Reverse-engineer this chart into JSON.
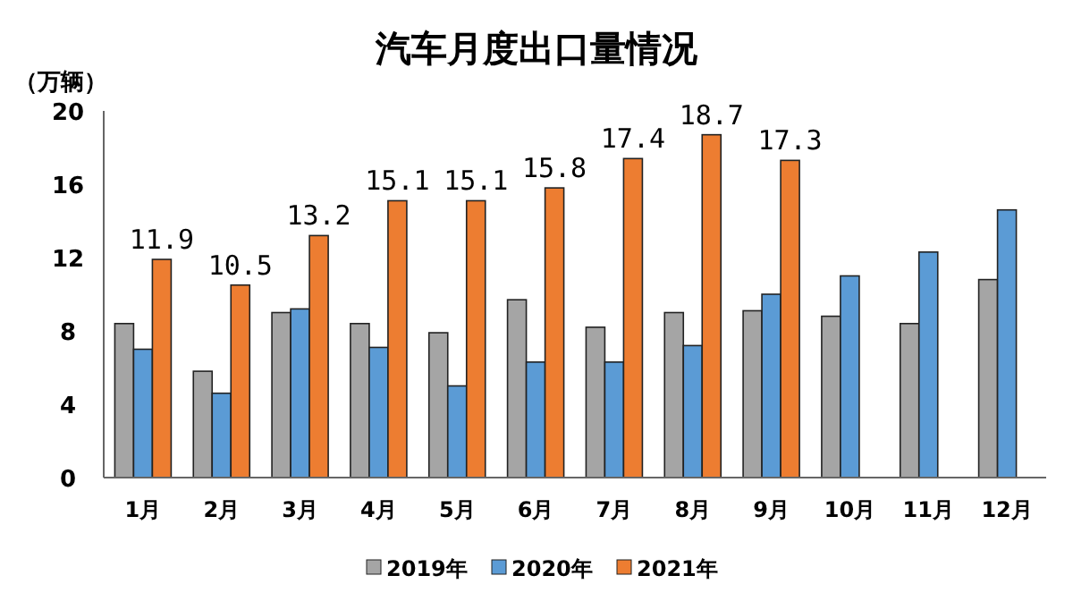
{
  "chart_data": {
    "type": "bar",
    "title": "汽车月度出口量情况",
    "ylabel": "（万辆）",
    "categories": [
      "1月",
      "2月",
      "3月",
      "4月",
      "5月",
      "6月",
      "7月",
      "8月",
      "9月",
      "10月",
      "11月",
      "12月"
    ],
    "series": [
      {
        "name": "2019年",
        "color": "#a5a5a5",
        "values": [
          8.4,
          5.8,
          9.0,
          8.4,
          7.9,
          9.7,
          8.2,
          9.0,
          9.1,
          8.8,
          8.4,
          10.8
        ]
      },
      {
        "name": "2020年",
        "color": "#5b9bd5",
        "values": [
          7.0,
          4.6,
          9.2,
          7.1,
          5.0,
          6.3,
          6.3,
          7.2,
          10.0,
          11.0,
          12.3,
          14.6
        ]
      },
      {
        "name": "2021年",
        "color": "#ed7d31",
        "values": [
          11.9,
          10.5,
          13.2,
          15.1,
          15.1,
          15.8,
          17.4,
          18.7,
          17.3,
          null,
          null,
          null
        ],
        "value_labels": [
          "11.9",
          "10.5",
          "13.2",
          "15.1",
          "15.1",
          "15.8",
          "17.4",
          "18.7",
          "17.3",
          null,
          null,
          null
        ]
      }
    ],
    "ylim": [
      0,
      20
    ],
    "yticks": [
      0,
      4,
      8,
      12,
      16,
      20
    ],
    "grid": false,
    "legend": "bottom"
  }
}
